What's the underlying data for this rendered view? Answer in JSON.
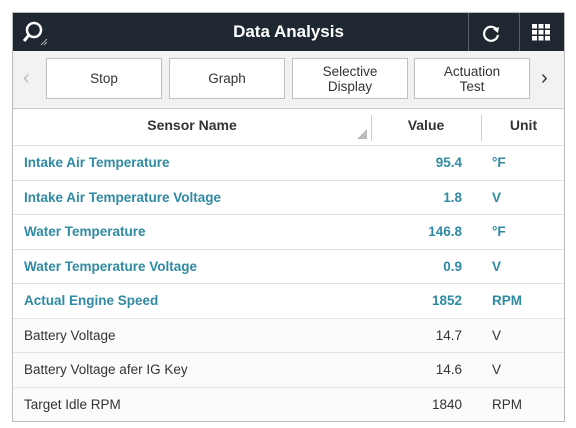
{
  "header": {
    "title": "Data Analysis"
  },
  "toolbar": {
    "buttons": [
      "Stop",
      "Graph",
      "Selective Display",
      "Actuation Test"
    ]
  },
  "table": {
    "columns": [
      "Sensor Name",
      "Value",
      "Unit"
    ],
    "highlighted_rows": [
      [
        "Intake Air Temperature",
        "95.4",
        "°F"
      ],
      [
        "Intake Air Temperature Voltage",
        "1.8",
        "V"
      ],
      [
        "Water Temperature",
        "146.8",
        "°F"
      ],
      [
        "Water Temperature Voltage",
        "0.9",
        "V"
      ],
      [
        "Actual Engine Speed",
        "1852",
        "RPM"
      ]
    ],
    "rows": [
      [
        "Battery Voltage",
        "14.7",
        "V"
      ],
      [
        "Battery Voltage afer IG Key",
        "14.6",
        "V"
      ],
      [
        "Target Idle RPM",
        "1840",
        "RPM"
      ]
    ]
  }
}
